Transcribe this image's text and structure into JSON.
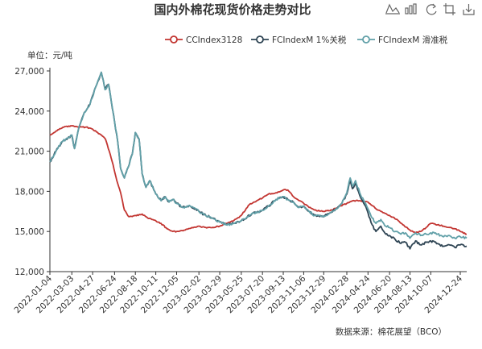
{
  "chart_data": {
    "type": "line",
    "title": "国内外棉花现货价格走势对比",
    "unit_label": "单位：元/吨",
    "source": "数据来源：棉花展望（BCO）",
    "ylim": [
      12000,
      27000
    ],
    "yticks": [
      12000,
      15000,
      18000,
      21000,
      24000,
      27000
    ],
    "ytick_labels": [
      "12,000",
      "15,000",
      "18,000",
      "21,000",
      "24,000",
      "27,000"
    ],
    "x_range": [
      "2022-01-04",
      "2025-01-10"
    ],
    "x_tick_labels": [
      "2022-01-04",
      "2022-03-03",
      "2022-04-27",
      "2022-06-24",
      "2022-08-18",
      "2022-10-11",
      "2022-12-05",
      "2023-02-02",
      "2023-03-29",
      "2023-05-25",
      "2023-07-20",
      "2023-09-13",
      "2023-11-06",
      "2023-12-29",
      "2024-02-28",
      "2024-04-24",
      "2024-06-20",
      "2024-08-13",
      "2024-10-07",
      "2024-12-24"
    ],
    "legend_position": "top-right",
    "grid": false,
    "series": [
      {
        "name": "CCIndex3128",
        "color": "#c23531",
        "marker": "circle",
        "points": [
          [
            "2022-01-04",
            22200
          ],
          [
            "2022-01-25",
            22600
          ],
          [
            "2022-02-15",
            22850
          ],
          [
            "2022-03-03",
            22900
          ],
          [
            "2022-03-20",
            22800
          ],
          [
            "2022-04-10",
            22800
          ],
          [
            "2022-04-27",
            22650
          ],
          [
            "2022-05-15",
            22300
          ],
          [
            "2022-05-31",
            21900
          ],
          [
            "2022-06-10",
            21000
          ],
          [
            "2022-06-20",
            20000
          ],
          [
            "2022-06-30",
            18800
          ],
          [
            "2022-07-10",
            17900
          ],
          [
            "2022-07-20",
            16600
          ],
          [
            "2022-08-01",
            16100
          ],
          [
            "2022-08-18",
            16200
          ],
          [
            "2022-09-05",
            16300
          ],
          [
            "2022-09-20",
            16000
          ],
          [
            "2022-10-11",
            15800
          ],
          [
            "2022-10-25",
            15600
          ],
          [
            "2022-11-10",
            15200
          ],
          [
            "2022-11-25",
            15000
          ],
          [
            "2022-12-05",
            15000
          ],
          [
            "2022-12-25",
            15100
          ],
          [
            "2023-01-15",
            15300
          ],
          [
            "2023-02-02",
            15400
          ],
          [
            "2023-02-20",
            15300
          ],
          [
            "2023-03-10",
            15300
          ],
          [
            "2023-03-29",
            15400
          ],
          [
            "2023-04-15",
            15600
          ],
          [
            "2023-05-05",
            15800
          ],
          [
            "2023-05-25",
            16200
          ],
          [
            "2023-06-15",
            17000
          ],
          [
            "2023-07-05",
            17300
          ],
          [
            "2023-07-20",
            17500
          ],
          [
            "2023-08-05",
            17800
          ],
          [
            "2023-08-25",
            17900
          ],
          [
            "2023-09-13",
            18100
          ],
          [
            "2023-09-25",
            18100
          ],
          [
            "2023-10-10",
            17600
          ],
          [
            "2023-10-25",
            17300
          ],
          [
            "2023-11-06",
            17100
          ],
          [
            "2023-11-20",
            16800
          ],
          [
            "2023-12-05",
            16600
          ],
          [
            "2023-12-29",
            16500
          ],
          [
            "2024-01-20",
            16600
          ],
          [
            "2024-02-10",
            16900
          ],
          [
            "2024-02-28",
            17100
          ],
          [
            "2024-03-15",
            17300
          ],
          [
            "2024-04-01",
            17300
          ],
          [
            "2024-04-24",
            17200
          ],
          [
            "2024-05-15",
            16700
          ],
          [
            "2024-06-05",
            16400
          ],
          [
            "2024-06-20",
            16200
          ],
          [
            "2024-07-10",
            15900
          ],
          [
            "2024-07-25",
            15500
          ],
          [
            "2024-08-13",
            15100
          ],
          [
            "2024-08-28",
            14900
          ],
          [
            "2024-09-10",
            15000
          ],
          [
            "2024-09-25",
            15300
          ],
          [
            "2024-10-07",
            15600
          ],
          [
            "2024-10-25",
            15500
          ],
          [
            "2024-11-10",
            15400
          ],
          [
            "2024-11-25",
            15300
          ],
          [
            "2024-12-10",
            15200
          ],
          [
            "2024-12-24",
            15000
          ],
          [
            "2025-01-10",
            14800
          ]
        ]
      },
      {
        "name": "FCIndexM 1%关税",
        "color": "#2f4554",
        "marker": "circle",
        "points": [
          [
            "2022-01-04",
            20200
          ],
          [
            "2022-01-20",
            21000
          ],
          [
            "2022-02-05",
            21700
          ],
          [
            "2022-02-15",
            21900
          ],
          [
            "2022-03-03",
            22200
          ],
          [
            "2022-03-10",
            21200
          ],
          [
            "2022-03-22",
            22800
          ],
          [
            "2022-04-05",
            23900
          ],
          [
            "2022-04-20",
            24500
          ],
          [
            "2022-05-05",
            25800
          ],
          [
            "2022-05-20",
            26900
          ],
          [
            "2022-05-30",
            25600
          ],
          [
            "2022-06-08",
            26000
          ],
          [
            "2022-06-15",
            24800
          ],
          [
            "2022-06-24",
            23200
          ],
          [
            "2022-07-02",
            21800
          ],
          [
            "2022-07-10",
            19700
          ],
          [
            "2022-07-20",
            19000
          ],
          [
            "2022-07-30",
            19800
          ],
          [
            "2022-08-10",
            20800
          ],
          [
            "2022-08-18",
            22400
          ],
          [
            "2022-08-28",
            21900
          ],
          [
            "2022-09-05",
            19300
          ],
          [
            "2022-09-15",
            18300
          ],
          [
            "2022-09-25",
            18800
          ],
          [
            "2022-10-11",
            17800
          ],
          [
            "2022-10-25",
            17300
          ],
          [
            "2022-11-05",
            17600
          ],
          [
            "2022-11-15",
            17200
          ],
          [
            "2022-11-25",
            17400
          ],
          [
            "2022-12-05",
            17100
          ],
          [
            "2022-12-20",
            16800
          ],
          [
            "2023-01-10",
            16900
          ],
          [
            "2023-02-02",
            16500
          ],
          [
            "2023-02-20",
            16200
          ],
          [
            "2023-03-10",
            16000
          ],
          [
            "2023-03-29",
            15700
          ],
          [
            "2023-04-15",
            15500
          ],
          [
            "2023-05-05",
            15600
          ],
          [
            "2023-05-25",
            15800
          ],
          [
            "2023-06-10",
            16100
          ],
          [
            "2023-06-25",
            16400
          ],
          [
            "2023-07-05",
            16400
          ],
          [
            "2023-07-20",
            16600
          ],
          [
            "2023-08-05",
            16900
          ],
          [
            "2023-08-25",
            17400
          ],
          [
            "2023-09-13",
            17600
          ],
          [
            "2023-09-25",
            17400
          ],
          [
            "2023-10-10",
            17200
          ],
          [
            "2023-10-25",
            16800
          ],
          [
            "2023-11-06",
            16900
          ],
          [
            "2023-11-20",
            16500
          ],
          [
            "2023-12-05",
            16200
          ],
          [
            "2023-12-29",
            16100
          ],
          [
            "2024-01-15",
            16400
          ],
          [
            "2024-01-30",
            16700
          ],
          [
            "2024-02-15",
            17100
          ],
          [
            "2024-02-28",
            17800
          ],
          [
            "2024-03-08",
            18800
          ],
          [
            "2024-03-14",
            18200
          ],
          [
            "2024-03-22",
            18600
          ],
          [
            "2024-04-02",
            17700
          ],
          [
            "2024-04-15",
            17000
          ],
          [
            "2024-04-24",
            16400
          ],
          [
            "2024-05-05",
            15500
          ],
          [
            "2024-05-15",
            15000
          ],
          [
            "2024-05-28",
            15400
          ],
          [
            "2024-06-10",
            14800
          ],
          [
            "2024-06-20",
            14700
          ],
          [
            "2024-07-05",
            14400
          ],
          [
            "2024-07-20",
            14100
          ],
          [
            "2024-08-01",
            14200
          ],
          [
            "2024-08-13",
            13700
          ],
          [
            "2024-08-28",
            14300
          ],
          [
            "2024-09-10",
            14000
          ],
          [
            "2024-09-25",
            14200
          ],
          [
            "2024-10-07",
            14300
          ],
          [
            "2024-10-25",
            14100
          ],
          [
            "2024-11-10",
            13900
          ],
          [
            "2024-11-25",
            14000
          ],
          [
            "2024-12-10",
            13800
          ],
          [
            "2024-12-24",
            14000
          ],
          [
            "2025-01-10",
            13900
          ]
        ]
      },
      {
        "name": "FCIndexM 滑准税",
        "color": "#61a0a8",
        "marker": "circle",
        "points": [
          [
            "2022-01-04",
            20200
          ],
          [
            "2022-01-20",
            21000
          ],
          [
            "2022-02-05",
            21700
          ],
          [
            "2022-02-15",
            21900
          ],
          [
            "2022-03-03",
            22200
          ],
          [
            "2022-03-10",
            21200
          ],
          [
            "2022-03-22",
            22800
          ],
          [
            "2022-04-05",
            23900
          ],
          [
            "2022-04-20",
            24500
          ],
          [
            "2022-05-05",
            25800
          ],
          [
            "2022-05-20",
            26900
          ],
          [
            "2022-05-30",
            25600
          ],
          [
            "2022-06-08",
            26000
          ],
          [
            "2022-06-15",
            24800
          ],
          [
            "2022-06-24",
            23200
          ],
          [
            "2022-07-02",
            21800
          ],
          [
            "2022-07-10",
            19700
          ],
          [
            "2022-07-20",
            19000
          ],
          [
            "2022-07-30",
            19800
          ],
          [
            "2022-08-10",
            20800
          ],
          [
            "2022-08-18",
            22400
          ],
          [
            "2022-08-28",
            21900
          ],
          [
            "2022-09-05",
            19300
          ],
          [
            "2022-09-15",
            18300
          ],
          [
            "2022-09-25",
            18800
          ],
          [
            "2022-10-11",
            17800
          ],
          [
            "2022-10-25",
            17300
          ],
          [
            "2022-11-05",
            17600
          ],
          [
            "2022-11-15",
            17200
          ],
          [
            "2022-11-25",
            17400
          ],
          [
            "2022-12-05",
            17100
          ],
          [
            "2022-12-20",
            16800
          ],
          [
            "2023-01-10",
            16900
          ],
          [
            "2023-02-02",
            16500
          ],
          [
            "2023-02-20",
            16200
          ],
          [
            "2023-03-10",
            16000
          ],
          [
            "2023-03-29",
            15700
          ],
          [
            "2023-04-15",
            15500
          ],
          [
            "2023-05-05",
            15600
          ],
          [
            "2023-05-25",
            15800
          ],
          [
            "2023-06-10",
            16100
          ],
          [
            "2023-06-25",
            16400
          ],
          [
            "2023-07-05",
            16400
          ],
          [
            "2023-07-20",
            16600
          ],
          [
            "2023-08-05",
            16900
          ],
          [
            "2023-08-25",
            17400
          ],
          [
            "2023-09-13",
            17600
          ],
          [
            "2023-09-25",
            17400
          ],
          [
            "2023-10-10",
            17200
          ],
          [
            "2023-10-25",
            16800
          ],
          [
            "2023-11-06",
            16900
          ],
          [
            "2023-11-20",
            16500
          ],
          [
            "2023-12-05",
            16200
          ],
          [
            "2023-12-29",
            16100
          ],
          [
            "2024-01-15",
            16400
          ],
          [
            "2024-01-30",
            16700
          ],
          [
            "2024-02-15",
            17100
          ],
          [
            "2024-02-28",
            17900
          ],
          [
            "2024-03-08",
            19000
          ],
          [
            "2024-03-14",
            18400
          ],
          [
            "2024-03-22",
            18800
          ],
          [
            "2024-04-02",
            17900
          ],
          [
            "2024-04-15",
            17200
          ],
          [
            "2024-04-24",
            16700
          ],
          [
            "2024-05-05",
            16000
          ],
          [
            "2024-05-15",
            15600
          ],
          [
            "2024-05-28",
            15900
          ],
          [
            "2024-06-10",
            15400
          ],
          [
            "2024-06-20",
            15300
          ],
          [
            "2024-07-05",
            15000
          ],
          [
            "2024-07-20",
            14800
          ],
          [
            "2024-08-01",
            14900
          ],
          [
            "2024-08-13",
            14500
          ],
          [
            "2024-08-28",
            14900
          ],
          [
            "2024-09-10",
            14700
          ],
          [
            "2024-09-25",
            14800
          ],
          [
            "2024-10-07",
            14900
          ],
          [
            "2024-10-25",
            14800
          ],
          [
            "2024-11-10",
            14600
          ],
          [
            "2024-11-25",
            14700
          ],
          [
            "2024-12-10",
            14500
          ],
          [
            "2024-12-24",
            14600
          ],
          [
            "2025-01-10",
            14500
          ]
        ]
      }
    ]
  },
  "toolbox": [
    "line-chart-icon",
    "bar-chart-icon",
    "restore-icon",
    "crop-icon",
    "download-icon"
  ]
}
